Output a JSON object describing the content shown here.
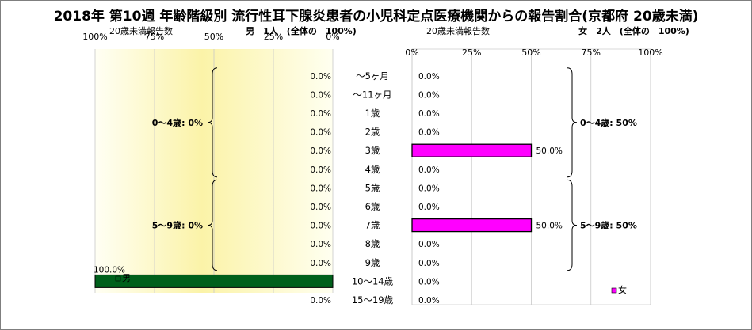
{
  "title": "2018年 第10週 年齢階級別 流行性耳下腺炎患者の小児科定点医療機関からの報告割合(京都府 20歳未満)",
  "age_labels": [
    "～5ヶ月",
    "～11ヶ月",
    "1歳",
    "2歳",
    "3歳",
    "4歳",
    "5歳",
    "6歳",
    "7歳",
    "8歳",
    "9歳",
    "10～14歳",
    "15～19歳"
  ],
  "chart_data": [
    {
      "type": "bar",
      "orientation": "horizontal",
      "direction": "right-to-left",
      "axis_title": "20歳未満報告数",
      "summary_label": "男　1人　(全体の　100%)",
      "tick_labels": [
        "100%",
        "75%",
        "50%",
        "25%",
        "0%"
      ],
      "xlim": [
        0,
        100
      ],
      "categories": [
        "～5ヶ月",
        "～11ヶ月",
        "1歳",
        "2歳",
        "3歳",
        "4歳",
        "5歳",
        "6歳",
        "7歳",
        "8歳",
        "9歳",
        "10～14歳",
        "15～19歳"
      ],
      "series": [
        {
          "name": "男",
          "color": "#00601b",
          "values": [
            0,
            0,
            0,
            0,
            0,
            0,
            0,
            0,
            0,
            0,
            0,
            100,
            0
          ],
          "value_labels": [
            "0.0%",
            "0.0%",
            "0.0%",
            "0.0%",
            "0.0%",
            "0.0%",
            "0.0%",
            "0.0%",
            "0.0%",
            "0.0%",
            "0.0%",
            "100.0%",
            "0.0%"
          ]
        }
      ],
      "groups": [
        {
          "label": "0～4歳: 0%",
          "from": "～5ヶ月",
          "to": "4歳"
        },
        {
          "label": "5～9歳: 0%",
          "from": "5歳",
          "to": "9歳"
        }
      ],
      "legend": "bottom-left",
      "grid": true,
      "background": "yellow gradient"
    },
    {
      "type": "bar",
      "orientation": "horizontal",
      "direction": "left-to-right",
      "axis_title": "20歳未満報告数",
      "summary_label": "女　2人　(全体の　100%)",
      "tick_labels": [
        "0%",
        "25%",
        "50%",
        "75%",
        "100%"
      ],
      "xlim": [
        0,
        100
      ],
      "categories": [
        "～5ヶ月",
        "～11ヶ月",
        "1歳",
        "2歳",
        "3歳",
        "4歳",
        "5歳",
        "6歳",
        "7歳",
        "8歳",
        "9歳",
        "10～14歳",
        "15～19歳"
      ],
      "series": [
        {
          "name": "女",
          "color": "#ff00ff",
          "values": [
            0,
            0,
            0,
            0,
            50,
            0,
            0,
            0,
            50,
            0,
            0,
            0,
            0
          ],
          "value_labels": [
            "0.0%",
            "0.0%",
            "0.0%",
            "0.0%",
            "50.0%",
            "0.0%",
            "0.0%",
            "0.0%",
            "50.0%",
            "0.0%",
            "0.0%",
            "0.0%",
            "0.0%"
          ]
        }
      ],
      "groups": [
        {
          "label": "0～4歳: 50%",
          "from": "～5ヶ月",
          "to": "4歳"
        },
        {
          "label": "5～9歳: 50%",
          "from": "5歳",
          "to": "9歳"
        }
      ],
      "legend": "bottom-right",
      "grid": true,
      "background": "white"
    }
  ]
}
